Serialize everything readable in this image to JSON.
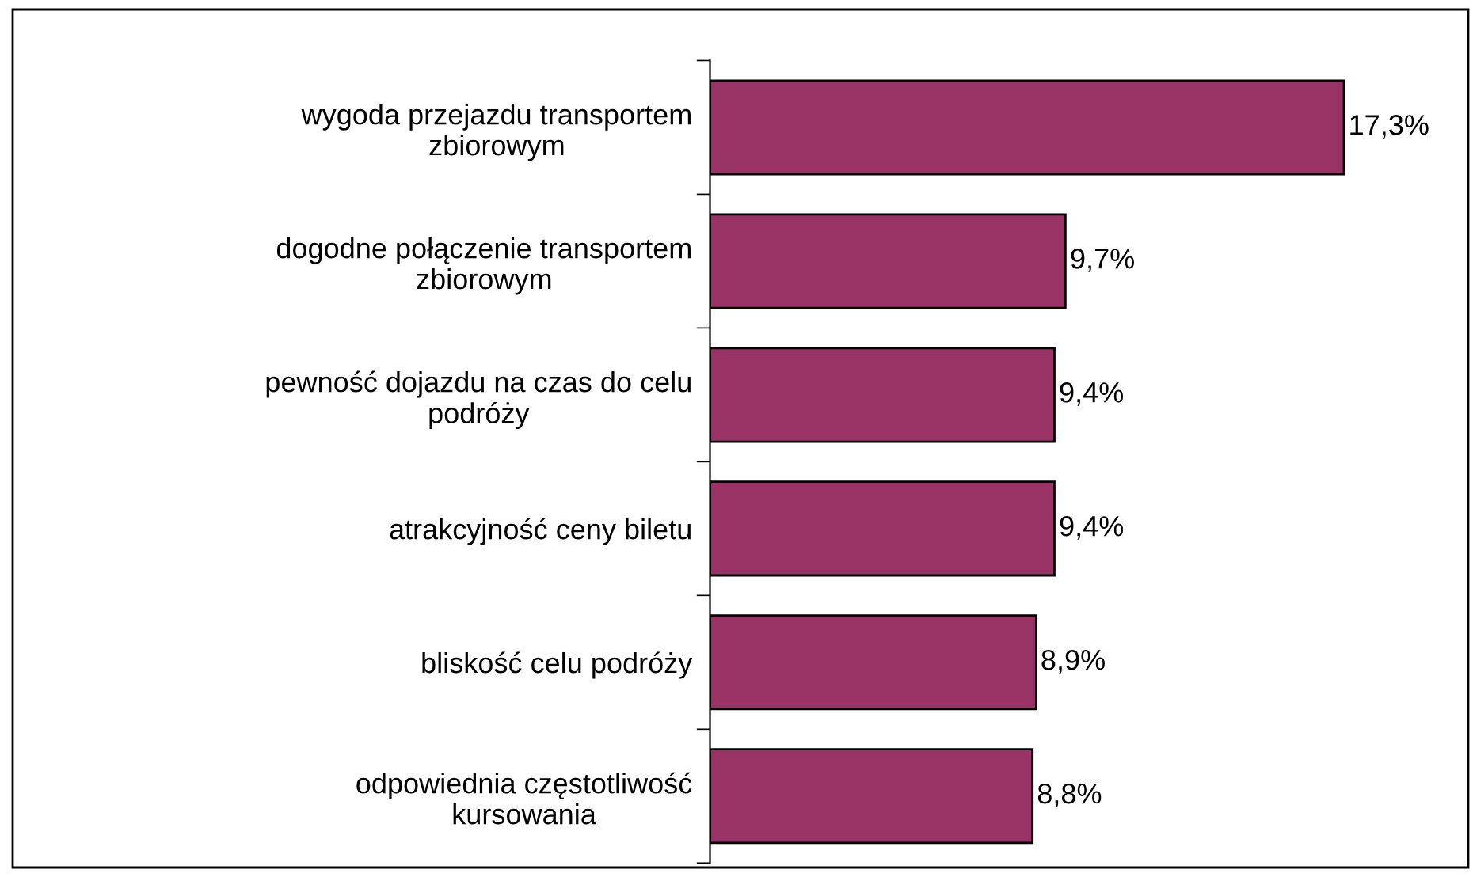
{
  "chart_data": {
    "type": "bar",
    "orientation": "horizontal",
    "categories": [
      "wygoda przejazdu transportem\nzbiorowym",
      "dogodne połączenie transportem\nzbiorowym",
      "pewność dojazdu na czas do celu\npodróży",
      "atrakcyjność ceny biletu",
      "bliskość celu podróży",
      "odpowiednia częstotliwość\nkursowania"
    ],
    "values": [
      17.3,
      9.7,
      9.4,
      9.4,
      8.9,
      8.8
    ],
    "value_labels": [
      "17,3%",
      "9,7%",
      "9,4%",
      "9,4%",
      "8,9%",
      "8,8%"
    ],
    "color": "#993366",
    "grid": false,
    "legend": false
  }
}
